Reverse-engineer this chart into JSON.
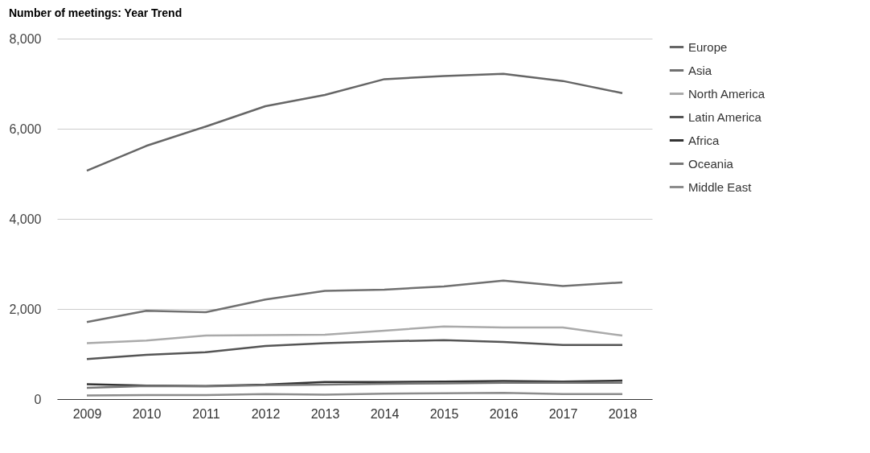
{
  "chart_data": {
    "type": "line",
    "title": "Number of meetings: Year Trend",
    "categories": [
      "2009",
      "2010",
      "2011",
      "2012",
      "2013",
      "2014",
      "2015",
      "2016",
      "2017",
      "2018"
    ],
    "series": [
      {
        "name": "Europe",
        "color": "#666666",
        "values": [
          5070,
          5620,
          6050,
          6500,
          6750,
          7100,
          7170,
          7220,
          7060,
          6790
        ]
      },
      {
        "name": "Asia",
        "color": "#707070",
        "values": [
          1710,
          1960,
          1930,
          2210,
          2400,
          2430,
          2500,
          2630,
          2510,
          2590
        ]
      },
      {
        "name": "North America",
        "color": "#aaaaaa",
        "values": [
          1240,
          1300,
          1410,
          1420,
          1430,
          1520,
          1610,
          1590,
          1590,
          1410
        ]
      },
      {
        "name": "Latin America",
        "color": "#555555",
        "values": [
          890,
          980,
          1040,
          1180,
          1240,
          1280,
          1310,
          1270,
          1200,
          1200
        ]
      },
      {
        "name": "Africa",
        "color": "#333333",
        "values": [
          330,
          300,
          290,
          320,
          380,
          380,
          390,
          400,
          390,
          410
        ]
      },
      {
        "name": "Oceania",
        "color": "#777777",
        "values": [
          250,
          290,
          280,
          310,
          320,
          340,
          350,
          360,
          360,
          360
        ]
      },
      {
        "name": "Middle East",
        "color": "#8c8c8c",
        "values": [
          80,
          90,
          90,
          110,
          100,
          120,
          130,
          140,
          110,
          110
        ]
      }
    ],
    "ylim": [
      0,
      8000
    ],
    "yticks": [
      0,
      {
        "value": 2000,
        "label": "2,000"
      },
      {
        "value": 4000,
        "label": "4,000"
      },
      {
        "value": 6000,
        "label": "6,000"
      },
      {
        "value": 8000,
        "label": "8,000"
      }
    ],
    "grid": "y",
    "legend": "top right",
    "marker": "none",
    "line_style": "solid"
  }
}
